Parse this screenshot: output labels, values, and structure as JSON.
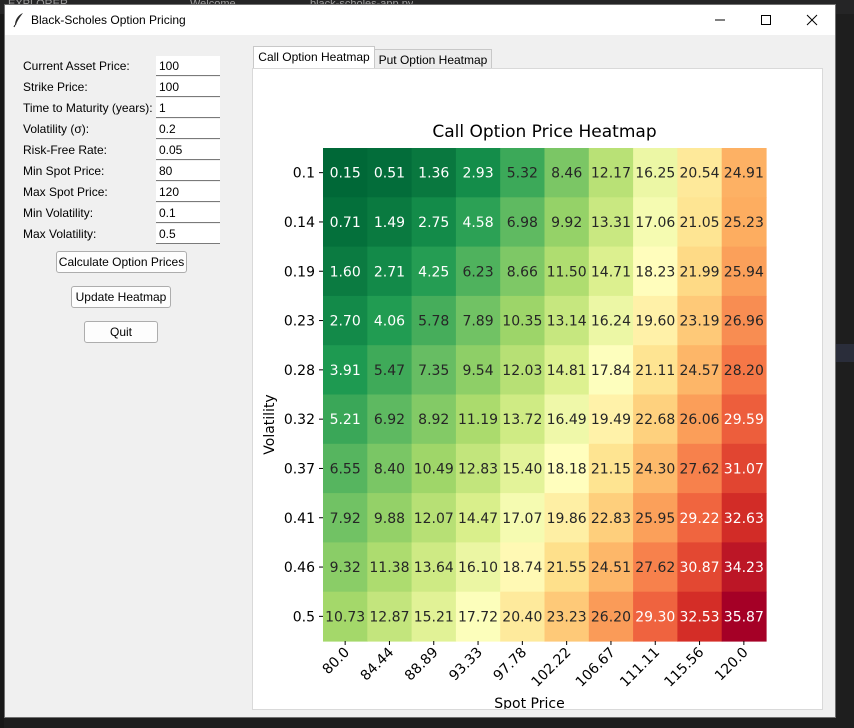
{
  "background": {
    "tab_1": "EXPLORER",
    "tab_2": "Welcome",
    "tab_3": "black-scholes-app.py"
  },
  "window": {
    "title": "Black-Scholes Option Pricing"
  },
  "form": {
    "fields": [
      {
        "label": "Current Asset Price:",
        "value": "100"
      },
      {
        "label": "Strike Price:",
        "value": "100"
      },
      {
        "label": "Time to Maturity (years):",
        "value": "1"
      },
      {
        "label": "Volatility (σ):",
        "value": "0.2"
      },
      {
        "label": "Risk-Free Rate:",
        "value": "0.05"
      },
      {
        "label": "Min Spot Price:",
        "value": "80"
      },
      {
        "label": "Max Spot Price:",
        "value": "120"
      },
      {
        "label": "Min Volatility:",
        "value": "0.1"
      },
      {
        "label": "Max Volatility:",
        "value": "0.5"
      }
    ],
    "buttons": {
      "calculate": "Calculate Option Prices",
      "update": "Update Heatmap",
      "quit": "Quit"
    }
  },
  "tabs": [
    {
      "label": "Call Option Heatmap",
      "active": true
    },
    {
      "label": "Put Option Heatmap",
      "active": false
    }
  ],
  "chart_data": {
    "type": "heatmap",
    "title": "Call Option Price Heatmap",
    "xlabel": "Spot Price",
    "ylabel": "Volatility",
    "x": [
      "80.0",
      "84.44",
      "88.89",
      "93.33",
      "97.78",
      "102.22",
      "106.67",
      "111.11",
      "115.56",
      "120.0"
    ],
    "y": [
      "0.1",
      "0.14",
      "0.19",
      "0.23",
      "0.28",
      "0.32",
      "0.37",
      "0.41",
      "0.46",
      "0.5"
    ],
    "values": [
      [
        "0.15",
        "0.51",
        "1.36",
        "2.93",
        "5.32",
        "8.46",
        "12.17",
        "16.25",
        "20.54",
        "24.91"
      ],
      [
        "0.71",
        "1.49",
        "2.75",
        "4.58",
        "6.98",
        "9.92",
        "13.31",
        "17.06",
        "21.05",
        "25.23"
      ],
      [
        "1.60",
        "2.71",
        "4.25",
        "6.23",
        "8.66",
        "11.50",
        "14.71",
        "18.23",
        "21.99",
        "25.94"
      ],
      [
        "2.70",
        "4.06",
        "5.78",
        "7.89",
        "10.35",
        "13.14",
        "16.24",
        "19.60",
        "23.19",
        "26.96"
      ],
      [
        "3.91",
        "5.47",
        "7.35",
        "9.54",
        "12.03",
        "14.81",
        "17.84",
        "21.11",
        "24.57",
        "28.20"
      ],
      [
        "5.21",
        "6.92",
        "8.92",
        "11.19",
        "13.72",
        "16.49",
        "19.49",
        "22.68",
        "26.06",
        "29.59"
      ],
      [
        "6.55",
        "8.40",
        "10.49",
        "12.83",
        "15.40",
        "18.18",
        "21.15",
        "24.30",
        "27.62",
        "31.07"
      ],
      [
        "7.92",
        "9.88",
        "12.07",
        "14.47",
        "17.07",
        "19.86",
        "22.83",
        "25.95",
        "29.22",
        "32.63"
      ],
      [
        "9.32",
        "11.38",
        "13.64",
        "16.10",
        "18.74",
        "21.55",
        "24.51",
        "27.62",
        "30.87",
        "34.23"
      ],
      [
        "10.73",
        "12.87",
        "15.21",
        "17.72",
        "20.40",
        "23.23",
        "26.20",
        "29.30",
        "32.53",
        "35.87"
      ]
    ],
    "colormap": "RdYlGn_r",
    "grid": false,
    "legend": false
  }
}
